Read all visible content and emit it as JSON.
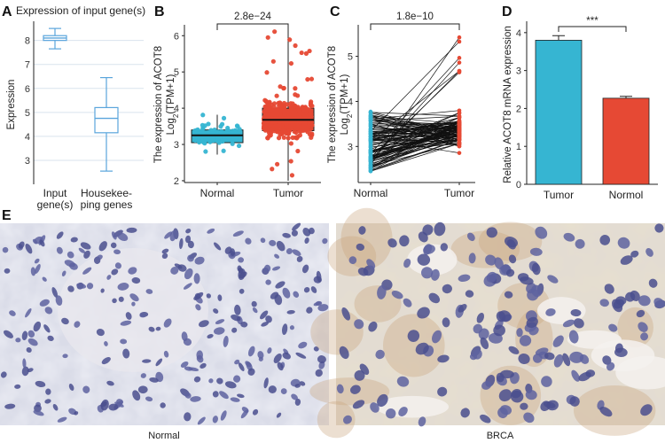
{
  "panel_letters": {
    "a": "A",
    "b": "B",
    "c": "C",
    "d": "D",
    "e": "E"
  },
  "colors": {
    "normal": "#36B5D2",
    "tumor": "#E64934",
    "boxA": "#5AA5DC",
    "grid": "#D9E3EE"
  },
  "chart_data": [
    {
      "id": "A",
      "type": "box",
      "title": "Expression of input gene(s)",
      "ylabel": "Expression",
      "ylim": [
        2,
        8.8
      ],
      "yticks": [
        3,
        4,
        5,
        6,
        7,
        8
      ],
      "categories": [
        "Input gene(s)",
        "Housekee- ping genes"
      ],
      "category_lines": [
        [
          "Input",
          "gene(s)"
        ],
        [
          "Housekee-",
          "ping genes"
        ]
      ],
      "boxes": [
        {
          "min": 7.65,
          "q1": 8.0,
          "median": 8.1,
          "q3": 8.2,
          "max": 8.5
        },
        {
          "min": 2.55,
          "q1": 4.15,
          "median": 4.75,
          "q3": 5.2,
          "max": 6.45
        }
      ],
      "grid": true
    },
    {
      "id": "B",
      "type": "box",
      "ylabel_lines": [
        "The expression of ACOT8",
        "Log2(TPM+1)"
      ],
      "ylim": [
        1.95,
        6.3
      ],
      "yticks": [
        2,
        3,
        4,
        5,
        6
      ],
      "categories": [
        "Normal",
        "Tumor"
      ],
      "boxes": [
        {
          "name": "Normal",
          "min": 2.72,
          "q1": 3.05,
          "median": 3.25,
          "q3": 3.4,
          "max": 3.82
        },
        {
          "name": "Tumor",
          "min": 2.0,
          "q1": 3.38,
          "median": 3.68,
          "q3": 4.0,
          "max": 6.2
        }
      ],
      "pvalue": "2.8e−24"
    },
    {
      "id": "C",
      "type": "paired_line",
      "ylabel_lines": [
        "The expression of ACOT8",
        "Log2(TPM+1)"
      ],
      "ylim": [
        2.2,
        5.7
      ],
      "yticks": [
        3,
        4,
        5
      ],
      "categories": [
        "Normal",
        "Tumor"
      ],
      "normal_range": [
        2.45,
        3.78
      ],
      "tumor_range": [
        2.5,
        5.58
      ],
      "pvalue": "1.8e−10"
    },
    {
      "id": "D",
      "type": "bar",
      "ylabel": "Relative ACOT8 mRNA expression",
      "ylim": [
        0,
        4.3
      ],
      "yticks": [
        0,
        1,
        2,
        3,
        4
      ],
      "categories": [
        "Tumor",
        "Normol"
      ],
      "values": [
        3.8,
        2.27
      ],
      "errors": [
        0.12,
        0.05
      ],
      "significance": "***"
    }
  ],
  "panel_e": {
    "left_caption": "Normal",
    "right_caption": "BRCA"
  }
}
